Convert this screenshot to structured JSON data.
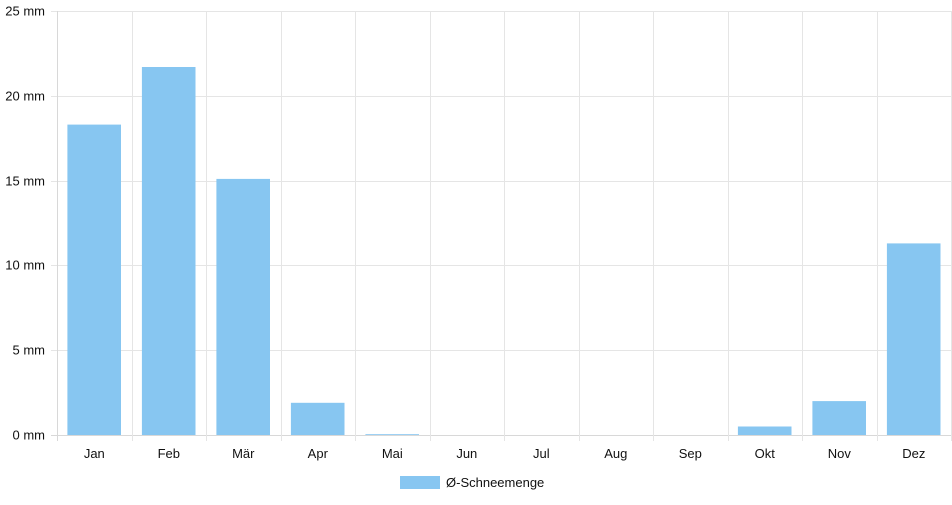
{
  "chart_data": {
    "type": "bar",
    "categories": [
      "Jan",
      "Feb",
      "Mär",
      "Apr",
      "Mai",
      "Jun",
      "Jul",
      "Aug",
      "Sep",
      "Okt",
      "Nov",
      "Dez"
    ],
    "series": [
      {
        "name": "Ø-Schneemenge",
        "values": [
          18.3,
          21.7,
          15.1,
          1.9,
          0.05,
          0,
          0,
          0,
          0,
          0.5,
          2.0,
          11.3
        ],
        "color": "#87c6f1"
      }
    ],
    "y_ticks": [
      "0 mm",
      "5 mm",
      "10 mm",
      "15 mm",
      "20 mm",
      "25 mm"
    ],
    "ylim": [
      0,
      25
    ],
    "grid": true,
    "legend_position": "bottom",
    "colors": {
      "grid": "#e5e5e5",
      "axis": "#d8d8d8",
      "bar": "#87c6f1"
    }
  }
}
